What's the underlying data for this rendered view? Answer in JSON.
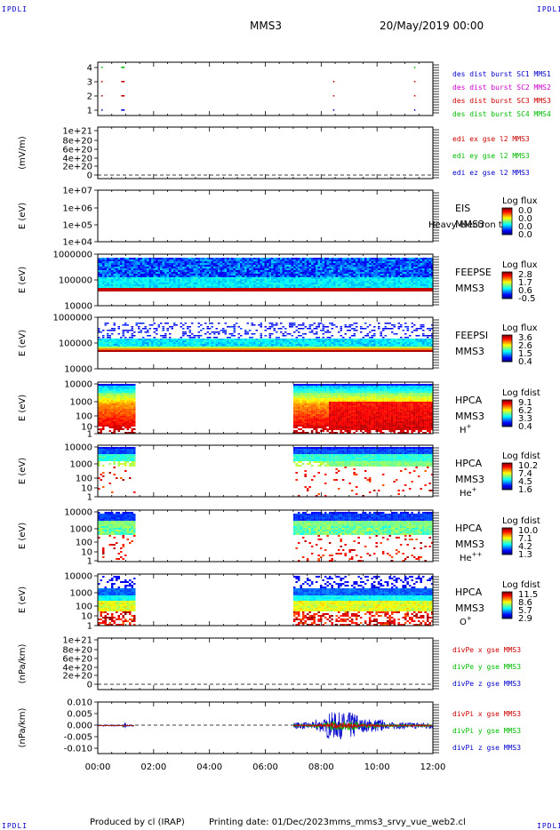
{
  "header": {
    "spacecraft": "MMS3",
    "datetime": "20/May/2019 00:00",
    "corner_tag": "IPDLI"
  },
  "footer": {
    "produced_by": "Produced by cl (IRAP)",
    "printing_date": "Printing date: 01/Dec/2023",
    "script_name": "mms_mms3_srvy_vue_web2.cl"
  },
  "colors": {
    "mms1": "#0000cc",
    "mms2": "#cc00cc",
    "mms3": "#cc0000",
    "mms4": "#00bb00",
    "x": "#cc0000",
    "y": "#00bb00",
    "z": "#0000cc"
  },
  "chart_data": [
    {
      "type": "scatter",
      "panel": "burst",
      "yticks": [
        "4",
        "3",
        "2",
        "1"
      ],
      "legend": [
        "des dist burst SC1 MMS1",
        "des dist burst SC2 MMS2",
        "des dist burst SC3 MMS3",
        "des dist burst SC4 MMS4"
      ],
      "series": [
        {
          "sc": 4,
          "color": "mms4",
          "times": [
            0.15,
            0.9,
            11.35
          ]
        },
        {
          "sc": 3,
          "color": "mms3",
          "times": [
            0.15,
            0.9,
            8.45,
            11.35
          ]
        },
        {
          "sc": 2,
          "color": "mms3",
          "times": [
            0.15,
            0.9,
            8.45,
            11.35
          ]
        },
        {
          "sc": 1,
          "color": "mms1",
          "times": [
            0.15,
            0.9,
            8.45,
            11.35
          ]
        }
      ]
    },
    {
      "type": "line",
      "panel": "edi",
      "ylabel": "(mV/m)",
      "yticks": [
        "1e+21",
        "8e+20",
        "6e+20",
        "4e+20",
        "2e+20",
        "0"
      ],
      "legend": [
        "edi ex gse l2 MMS3",
        "edi ey gse l2 MMS3",
        "edi ez gse l2 MMS3"
      ],
      "baseline": 0
    },
    {
      "type": "heatmap",
      "panel": "EIS",
      "ylabel": "E (eV)",
      "yticks": [
        "1e+07",
        "1e+06",
        "1e+05",
        "1e+04"
      ],
      "label1": "EIS",
      "overlay": "Heavy electron to",
      "label2": "MMS3",
      "cbar_title": "Log flux",
      "cbar_ticks": [
        "0.0",
        "0.0",
        "0.0",
        "0.0"
      ],
      "data": "empty"
    },
    {
      "type": "heatmap",
      "panel": "FEEPSE",
      "ylabel": "E (eV)",
      "yticks": [
        "1000000",
        "100000",
        "10000"
      ],
      "label1": "FEEPSE",
      "label2": "MMS3",
      "cbar_title": "Log flux",
      "cbar_ticks": [
        "2.8",
        "1.7",
        "0.6",
        "-0.5"
      ],
      "coverage": [
        0.0,
        12.0
      ]
    },
    {
      "type": "heatmap",
      "panel": "FEEPSI",
      "ylabel": "E (eV)",
      "yticks": [
        "1000000",
        "100000",
        "10000"
      ],
      "label1": "FEEPSI",
      "label2": "MMS3",
      "cbar_title": "Log flux",
      "cbar_ticks": [
        "3.6",
        "2.6",
        "1.5",
        "0.4"
      ],
      "coverage": [
        0.0,
        12.0
      ]
    },
    {
      "type": "heatmap",
      "panel": "HPCA_H",
      "ylabel": "E (eV)",
      "yticks": [
        "10000",
        "1000",
        "100",
        "10",
        "1"
      ],
      "label1": "HPCA",
      "label2": "MMS3",
      "species": "H",
      "species_sup": "+",
      "cbar_title": "Log fdist",
      "cbar_ticks": [
        "9.1",
        "6.2",
        "3.3",
        "0.4"
      ],
      "coverage": [
        [
          0.0,
          1.3
        ],
        [
          7.0,
          12.0
        ]
      ]
    },
    {
      "type": "heatmap",
      "panel": "HPCA_He",
      "ylabel": "E (eV)",
      "yticks": [
        "10000",
        "1000",
        "100",
        "10",
        "1"
      ],
      "label1": "HPCA",
      "label2": "MMS3",
      "species": "He",
      "species_sup": "+",
      "cbar_title": "Log fdist",
      "cbar_ticks": [
        "10.2",
        "7.4",
        "4.5",
        "1.6"
      ],
      "coverage": [
        [
          0.0,
          1.3
        ],
        [
          7.0,
          12.0
        ]
      ]
    },
    {
      "type": "heatmap",
      "panel": "HPCA_He2",
      "ylabel": "E (eV)",
      "yticks": [
        "10000",
        "1000",
        "100",
        "10",
        "1"
      ],
      "label1": "HPCA",
      "label2": "MMS3",
      "species": "He",
      "species_sup": "++",
      "cbar_title": "Log fdist",
      "cbar_ticks": [
        "10.0",
        "7.1",
        "4.2",
        "1.3"
      ],
      "coverage": [
        [
          0.0,
          1.3
        ],
        [
          7.0,
          12.0
        ]
      ]
    },
    {
      "type": "heatmap",
      "panel": "HPCA_O",
      "ylabel": "E (eV)",
      "yticks": [
        "10000",
        "1000",
        "100",
        "10",
        "1"
      ],
      "label1": "HPCA",
      "label2": "MMS3",
      "species": "O",
      "species_sup": "+",
      "cbar_title": "Log fdist",
      "cbar_ticks": [
        "11.5",
        "8.6",
        "5.7",
        "2.9"
      ],
      "coverage": [
        [
          0.0,
          1.3
        ],
        [
          7.0,
          12.0
        ]
      ]
    },
    {
      "type": "line",
      "panel": "divPe",
      "ylabel": "(nPa/km)",
      "yticks": [
        "1e+21",
        "8e+20",
        "6e+20",
        "4e+20",
        "2e+20",
        "0"
      ],
      "legend": [
        "divPe x gse MMS3",
        "divPe y gse MMS3",
        "divPe z gse MMS3"
      ],
      "baseline": 0
    },
    {
      "type": "line",
      "panel": "divPi",
      "ylabel": "(nPa/km)",
      "yticks": [
        "0.010",
        "0.005",
        "0.000",
        "-0.005",
        "-0.010"
      ],
      "ylim": [
        -0.0125,
        0.0105
      ],
      "legend": [
        "divPi x gse MMS3",
        "divPi y gse MMS3",
        "divPi z gse MMS3"
      ],
      "baseline": 0,
      "segments": [
        [
          0.0,
          1.3
        ],
        [
          7.0,
          12.0
        ]
      ]
    }
  ],
  "xaxis": {
    "xlim": [
      0,
      12
    ],
    "ticks": [
      "00:00",
      "02:00",
      "04:00",
      "06:00",
      "08:00",
      "10:00",
      "12:00"
    ]
  }
}
